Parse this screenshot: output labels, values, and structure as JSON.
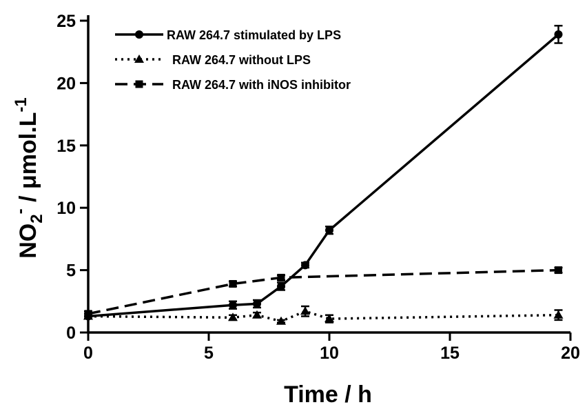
{
  "chart_data": {
    "type": "line",
    "xlabel": "Time / h",
    "ylabel": {
      "prefix": "NO",
      "sub": "2",
      "sup": "-",
      "middle": " / μmol.L",
      "unit_sup": "-1"
    },
    "xlim": [
      0,
      20
    ],
    "ylim": [
      0,
      25
    ],
    "xticks": [
      0,
      5,
      10,
      15,
      20
    ],
    "yticks": [
      0,
      5,
      10,
      15,
      20,
      25
    ],
    "grid": false,
    "legend_position": "top-left",
    "series": [
      {
        "name": "RAW 264.7 stimulated by LPS",
        "line_style": "solid",
        "marker": "circle",
        "color": "#000000",
        "x": [
          0,
          6,
          7,
          8,
          9,
          10,
          19.5
        ],
        "y": [
          1.3,
          2.2,
          2.3,
          3.7,
          5.4,
          8.2,
          23.9
        ],
        "err": [
          0.2,
          0.3,
          0.3,
          0.3,
          0.2,
          0.3,
          0.7
        ]
      },
      {
        "name": "RAW 264.7 without LPS",
        "line_style": "dotted",
        "marker": "triangle",
        "color": "#000000",
        "x": [
          0,
          6,
          7,
          8,
          9,
          10,
          19.5
        ],
        "y": [
          1.3,
          1.2,
          1.4,
          0.9,
          1.7,
          1.1,
          1.4
        ],
        "err": [
          0.2,
          0.2,
          0.2,
          0.1,
          0.4,
          0.3,
          0.4
        ]
      },
      {
        "name": "RAW 264.7 with iNOS inhibitor",
        "line_style": "dashed",
        "marker": "square",
        "color": "#000000",
        "x": [
          0,
          6,
          8,
          19.5
        ],
        "y": [
          1.5,
          3.9,
          4.4,
          5.0
        ],
        "err": [
          0.2,
          0.2,
          0.2,
          0.2
        ]
      }
    ]
  }
}
